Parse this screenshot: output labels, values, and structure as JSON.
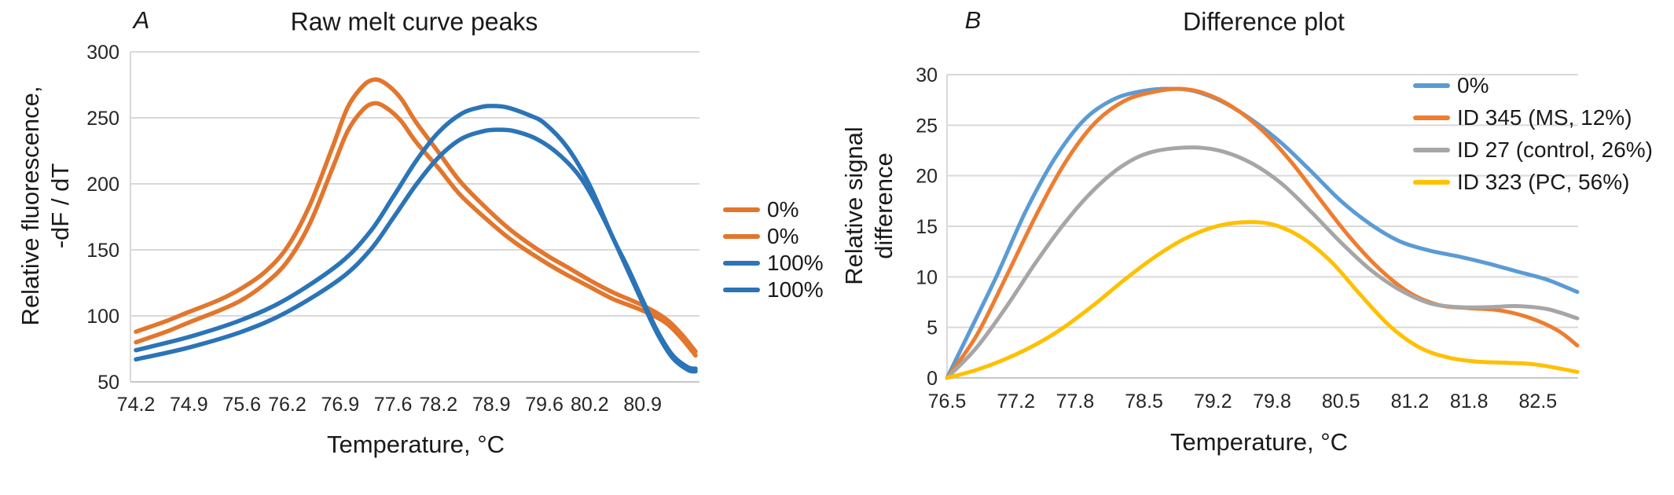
{
  "figure": {
    "panels": [
      {
        "letter": "A",
        "title": "Raw melt curve peaks",
        "y_axis_label": [
          "Relative fluorescence,",
          "-dF / dT"
        ],
        "x_axis_label": "Temperature, °C"
      },
      {
        "letter": "B",
        "title": "Difference plot",
        "y_axis_label": [
          "Relative signal",
          "difference"
        ],
        "x_axis_label": "Temperature, °C"
      }
    ]
  },
  "chart_data": [
    {
      "type": "line",
      "panel": "A",
      "title": "Raw melt curve peaks",
      "xlabel": "Temperature, °C",
      "ylabel": "Relative fluorescence, -dF / dT",
      "xlim": [
        74.2,
        81.6
      ],
      "ylim": [
        50,
        300
      ],
      "x_ticks": [
        74.2,
        74.9,
        75.6,
        76.2,
        76.9,
        77.6,
        78.2,
        78.9,
        79.6,
        80.2,
        80.9
      ],
      "y_ticks": [
        300,
        250,
        200,
        150,
        100,
        50
      ],
      "grid": true,
      "grid_color": "#D9D9D9",
      "legend_position": "right-outside",
      "series": [
        {
          "name": "0%",
          "color": "#E2762D",
          "points": [
            [
              74.2,
              88
            ],
            [
              74.6,
              96
            ],
            [
              74.9,
              103
            ],
            [
              75.3,
              112
            ],
            [
              75.6,
              121
            ],
            [
              75.9,
              133
            ],
            [
              76.2,
              152
            ],
            [
              76.5,
              184
            ],
            [
              76.8,
              228
            ],
            [
              77.0,
              258
            ],
            [
              77.2,
              274
            ],
            [
              77.35,
              279
            ],
            [
              77.5,
              276
            ],
            [
              77.7,
              265
            ],
            [
              77.9,
              247
            ],
            [
              78.2,
              224
            ],
            [
              78.5,
              201
            ],
            [
              78.9,
              178
            ],
            [
              79.2,
              163
            ],
            [
              79.6,
              147
            ],
            [
              79.9,
              137
            ],
            [
              80.2,
              127
            ],
            [
              80.5,
              118
            ],
            [
              80.9,
              108
            ],
            [
              81.2,
              98
            ],
            [
              81.4,
              87
            ],
            [
              81.6,
              73
            ]
          ]
        },
        {
          "name": "0%",
          "color": "#E2762D",
          "points": [
            [
              74.2,
              80
            ],
            [
              74.6,
              88
            ],
            [
              74.9,
              95
            ],
            [
              75.3,
              104
            ],
            [
              75.6,
              112
            ],
            [
              75.9,
              124
            ],
            [
              76.2,
              141
            ],
            [
              76.5,
              170
            ],
            [
              76.8,
              212
            ],
            [
              77.0,
              240
            ],
            [
              77.2,
              256
            ],
            [
              77.35,
              261
            ],
            [
              77.5,
              258
            ],
            [
              77.7,
              248
            ],
            [
              77.9,
              232
            ],
            [
              78.2,
              212
            ],
            [
              78.5,
              191
            ],
            [
              78.9,
              170
            ],
            [
              79.2,
              156
            ],
            [
              79.6,
              141
            ],
            [
              79.9,
              131
            ],
            [
              80.2,
              122
            ],
            [
              80.5,
              113
            ],
            [
              80.9,
              104
            ],
            [
              81.2,
              95
            ],
            [
              81.4,
              84
            ],
            [
              81.6,
              70
            ]
          ]
        },
        {
          "name": "100%",
          "color": "#2B74B8",
          "points": [
            [
              74.2,
              74
            ],
            [
              74.9,
              84
            ],
            [
              75.6,
              97
            ],
            [
              76.2,
              113
            ],
            [
              76.9,
              140
            ],
            [
              77.3,
              164
            ],
            [
              77.6,
              190
            ],
            [
              77.9,
              217
            ],
            [
              78.2,
              239
            ],
            [
              78.5,
              253
            ],
            [
              78.75,
              258
            ],
            [
              78.9,
              259
            ],
            [
              79.1,
              258
            ],
            [
              79.4,
              252
            ],
            [
              79.6,
              246
            ],
            [
              79.9,
              228
            ],
            [
              80.2,
              199
            ],
            [
              80.5,
              160
            ],
            [
              80.7,
              137
            ],
            [
              80.9,
              112
            ],
            [
              81.1,
              88
            ],
            [
              81.3,
              70
            ],
            [
              81.5,
              61
            ],
            [
              81.6,
              60
            ]
          ]
        },
        {
          "name": "100%",
          "color": "#2B74B8",
          "points": [
            [
              74.2,
              67
            ],
            [
              74.9,
              76
            ],
            [
              75.6,
              88
            ],
            [
              76.2,
              103
            ],
            [
              76.9,
              128
            ],
            [
              77.3,
              150
            ],
            [
              77.6,
              174
            ],
            [
              77.9,
              199
            ],
            [
              78.2,
              220
            ],
            [
              78.5,
              234
            ],
            [
              78.8,
              240
            ],
            [
              79.0,
              241
            ],
            [
              79.2,
              240
            ],
            [
              79.5,
              234
            ],
            [
              79.8,
              222
            ],
            [
              80.1,
              203
            ],
            [
              80.4,
              172
            ],
            [
              80.7,
              135
            ],
            [
              80.9,
              110
            ],
            [
              81.1,
              86
            ],
            [
              81.3,
              68
            ],
            [
              81.5,
              59
            ],
            [
              81.6,
              58
            ]
          ]
        }
      ]
    },
    {
      "type": "line",
      "panel": "B",
      "title": "Difference plot",
      "xlabel": "Temperature, °C",
      "ylabel": "Relative signal difference",
      "xlim": [
        76.5,
        82.9
      ],
      "ylim": [
        0,
        30
      ],
      "x_ticks": [
        76.5,
        77.2,
        77.8,
        78.5,
        79.2,
        79.8,
        80.5,
        81.2,
        81.8,
        82.5
      ],
      "y_ticks": [
        30,
        25,
        20,
        15,
        10,
        5,
        0
      ],
      "grid": true,
      "grid_color": "#D9D9D9",
      "legend_position": "top-right-inside",
      "series": [
        {
          "name": "0%",
          "color": "#5B9BD5",
          "points": [
            [
              76.5,
              0
            ],
            [
              76.7,
              4
            ],
            [
              77.0,
              10
            ],
            [
              77.3,
              16.5
            ],
            [
              77.6,
              21.8
            ],
            [
              77.9,
              25.6
            ],
            [
              78.2,
              27.6
            ],
            [
              78.5,
              28.4
            ],
            [
              78.75,
              28.6
            ],
            [
              79.0,
              28.4
            ],
            [
              79.3,
              27.3
            ],
            [
              79.6,
              25.5
            ],
            [
              79.9,
              23.2
            ],
            [
              80.2,
              20.4
            ],
            [
              80.5,
              17.5
            ],
            [
              80.8,
              15.2
            ],
            [
              81.1,
              13.5
            ],
            [
              81.4,
              12.6
            ],
            [
              81.7,
              12.0
            ],
            [
              82.0,
              11.3
            ],
            [
              82.3,
              10.5
            ],
            [
              82.6,
              9.7
            ],
            [
              82.9,
              8.5
            ]
          ]
        },
        {
          "name": "ID 345 (MS, 12%)",
          "color": "#ED7D31",
          "points": [
            [
              76.5,
              0
            ],
            [
              76.8,
              4.2
            ],
            [
              77.1,
              10
            ],
            [
              77.4,
              16
            ],
            [
              77.7,
              21.3
            ],
            [
              78.0,
              25.2
            ],
            [
              78.3,
              27.4
            ],
            [
              78.6,
              28.3
            ],
            [
              78.85,
              28.6
            ],
            [
              79.1,
              28.2
            ],
            [
              79.4,
              26.8
            ],
            [
              79.7,
              24.5
            ],
            [
              80.0,
              21.3
            ],
            [
              80.3,
              17.5
            ],
            [
              80.6,
              13.8
            ],
            [
              80.9,
              10.7
            ],
            [
              81.2,
              8.4
            ],
            [
              81.5,
              7.2
            ],
            [
              81.8,
              6.9
            ],
            [
              82.1,
              6.7
            ],
            [
              82.4,
              6.0
            ],
            [
              82.7,
              4.7
            ],
            [
              82.9,
              3.2
            ]
          ]
        },
        {
          "name": "ID 27 (control, 26%)",
          "color": "#A6A6A6",
          "points": [
            [
              76.5,
              0
            ],
            [
              76.8,
              3
            ],
            [
              77.1,
              7
            ],
            [
              77.4,
              11.4
            ],
            [
              77.7,
              15.4
            ],
            [
              78.0,
              18.7
            ],
            [
              78.3,
              21.1
            ],
            [
              78.6,
              22.4
            ],
            [
              79.0,
              22.8
            ],
            [
              79.3,
              22.4
            ],
            [
              79.6,
              21.2
            ],
            [
              79.9,
              19.2
            ],
            [
              80.2,
              16.4
            ],
            [
              80.5,
              13.4
            ],
            [
              80.8,
              10.7
            ],
            [
              81.1,
              8.7
            ],
            [
              81.4,
              7.4
            ],
            [
              81.7,
              7.0
            ],
            [
              82.0,
              7.0
            ],
            [
              82.3,
              7.1
            ],
            [
              82.6,
              6.8
            ],
            [
              82.9,
              5.9
            ]
          ]
        },
        {
          "name": "ID 323 (PC, 56%)",
          "color": "#FFC000",
          "points": [
            [
              76.5,
              0
            ],
            [
              76.8,
              0.8
            ],
            [
              77.1,
              1.9
            ],
            [
              77.4,
              3.3
            ],
            [
              77.7,
              5.1
            ],
            [
              78.0,
              7.3
            ],
            [
              78.3,
              9.7
            ],
            [
              78.6,
              11.9
            ],
            [
              78.9,
              13.7
            ],
            [
              79.2,
              14.9
            ],
            [
              79.5,
              15.4
            ],
            [
              79.8,
              15.2
            ],
            [
              80.1,
              13.9
            ],
            [
              80.4,
              11.5
            ],
            [
              80.7,
              8.2
            ],
            [
              81.0,
              5.1
            ],
            [
              81.3,
              3.0
            ],
            [
              81.6,
              2.0
            ],
            [
              81.9,
              1.6
            ],
            [
              82.2,
              1.5
            ],
            [
              82.5,
              1.3
            ],
            [
              82.9,
              0.6
            ]
          ]
        }
      ]
    }
  ]
}
